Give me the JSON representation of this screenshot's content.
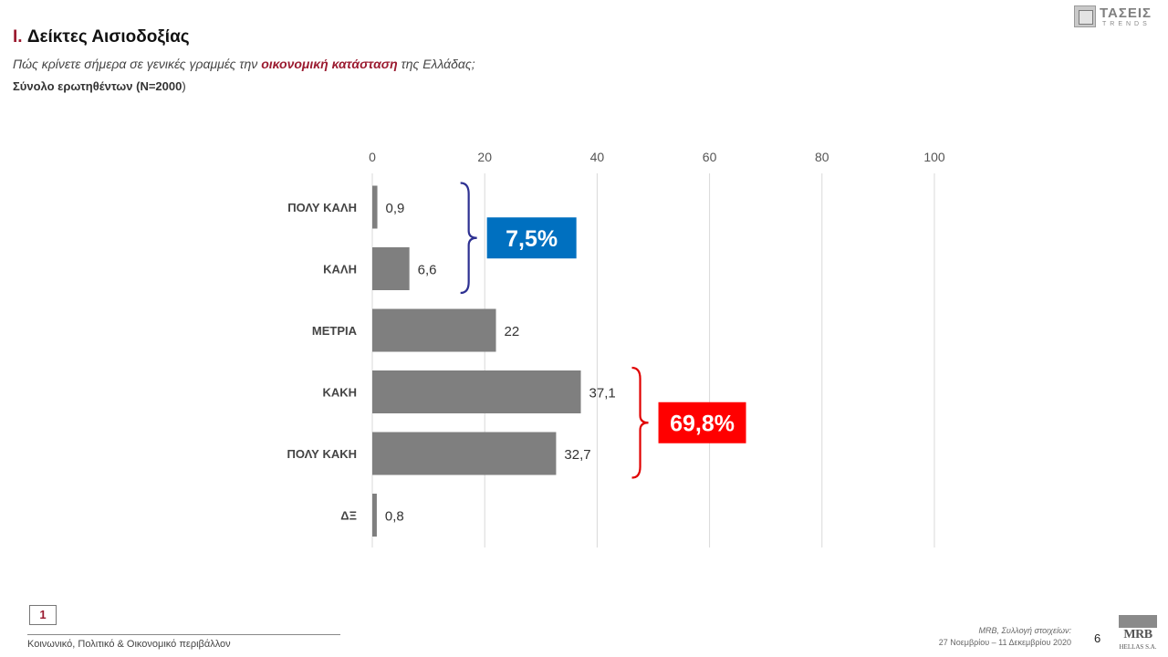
{
  "header": {
    "title_num": "I.",
    "title_text": " Δείκτες Αισιοδοξίας",
    "question_pre": "Πώς κρίνετε σήμερα σε γενικές γραμμές την ",
    "question_hl": "οικονομική κατάσταση",
    "question_post": " της Ελλάδας;",
    "base_bold": "Σύνολο ερωτηθέντων (N=2000",
    "base_paren": ")"
  },
  "logo_top": {
    "line1": "ΤΑΣΕΙΣ",
    "line2": "TRENDS",
    "icon": "tasis-logo-icon"
  },
  "chart_data": {
    "type": "bar",
    "orientation": "horizontal",
    "categories": [
      "ΠΟΛΥ ΚΑΛΗ",
      "ΚΑΛΗ",
      "ΜΕΤΡΙΑ",
      "ΚΑΚΗ",
      "ΠΟΛΥ ΚΑΚΗ",
      "ΔΞ"
    ],
    "values": [
      0.9,
      6.6,
      22,
      37.1,
      32.7,
      0.8
    ],
    "value_labels": [
      "0,9",
      "6,6",
      "22",
      "37,1",
      "32,7",
      "0,8"
    ],
    "xlim": [
      0,
      100
    ],
    "xticks": [
      0,
      20,
      40,
      60,
      80,
      100
    ],
    "grid": true,
    "axis_position": "top",
    "bar_color": "#7f7f7f",
    "annotations": [
      {
        "label": "7,5%",
        "covers": [
          "ΠΟΛΥ ΚΑΛΗ",
          "ΚΑΛΗ"
        ],
        "color": "#0070c0",
        "brace_color": "#2e3192"
      },
      {
        "label": "69,8%",
        "covers": [
          "ΚΑΚΗ",
          "ΠΟΛΥ ΚΑΚΗ"
        ],
        "color": "#ff0000",
        "brace_color": "#e00000"
      }
    ]
  },
  "footer": {
    "page_box": "1",
    "section": "Κοινωνικό, Πολιτικό & Οικονομικό περιβάλλον",
    "source_line1": "MRB, Συλλογή στοιχείων:",
    "source_line2": "27 Νοεμβρίου –  11 Δεκεμβρίου 2020",
    "page_number": "6"
  },
  "logo_bottom": {
    "line1": "MRB",
    "line2": "HELLAS S.A.",
    "icon": "mrb-logo-icon"
  }
}
